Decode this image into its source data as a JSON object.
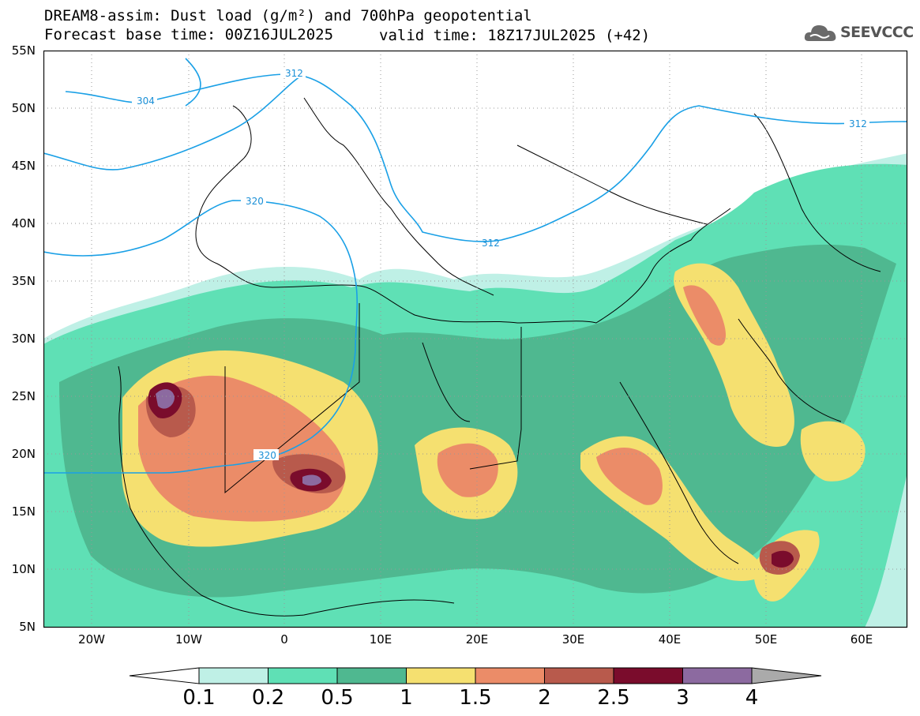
{
  "title": {
    "line1": "DREAM8-assim: Dust load (g/m²) and 700hPa geopotential",
    "line2": "Forecast base time: 00Z16JUL2025",
    "valid": "valid time: 18Z17JUL2025 (+42)"
  },
  "logo": {
    "text": "SEEVCCC",
    "icon": "cloud-logo-icon"
  },
  "axes": {
    "lat_labels": [
      "55N",
      "50N",
      "45N",
      "40N",
      "35N",
      "30N",
      "25N",
      "20N",
      "15N",
      "10N",
      "5N"
    ],
    "lon_labels": [
      "20W",
      "10W",
      "0",
      "10E",
      "20E",
      "30E",
      "40E",
      "50E",
      "60E"
    ]
  },
  "contours": {
    "labels": [
      "304",
      "312",
      "320",
      "312",
      "312",
      "320"
    ]
  },
  "colorbar": {
    "levels": [
      "0.1",
      "0.2",
      "0.5",
      "1",
      "1.5",
      "2",
      "2.5",
      "3",
      "4"
    ],
    "colors": [
      "#bff0e6",
      "#5fe0b5",
      "#4fb890",
      "#f5e070",
      "#eb8c68",
      "#b85a4c",
      "#7a0c2c",
      "#8c6aa0",
      "#aaaaaa"
    ]
  }
}
